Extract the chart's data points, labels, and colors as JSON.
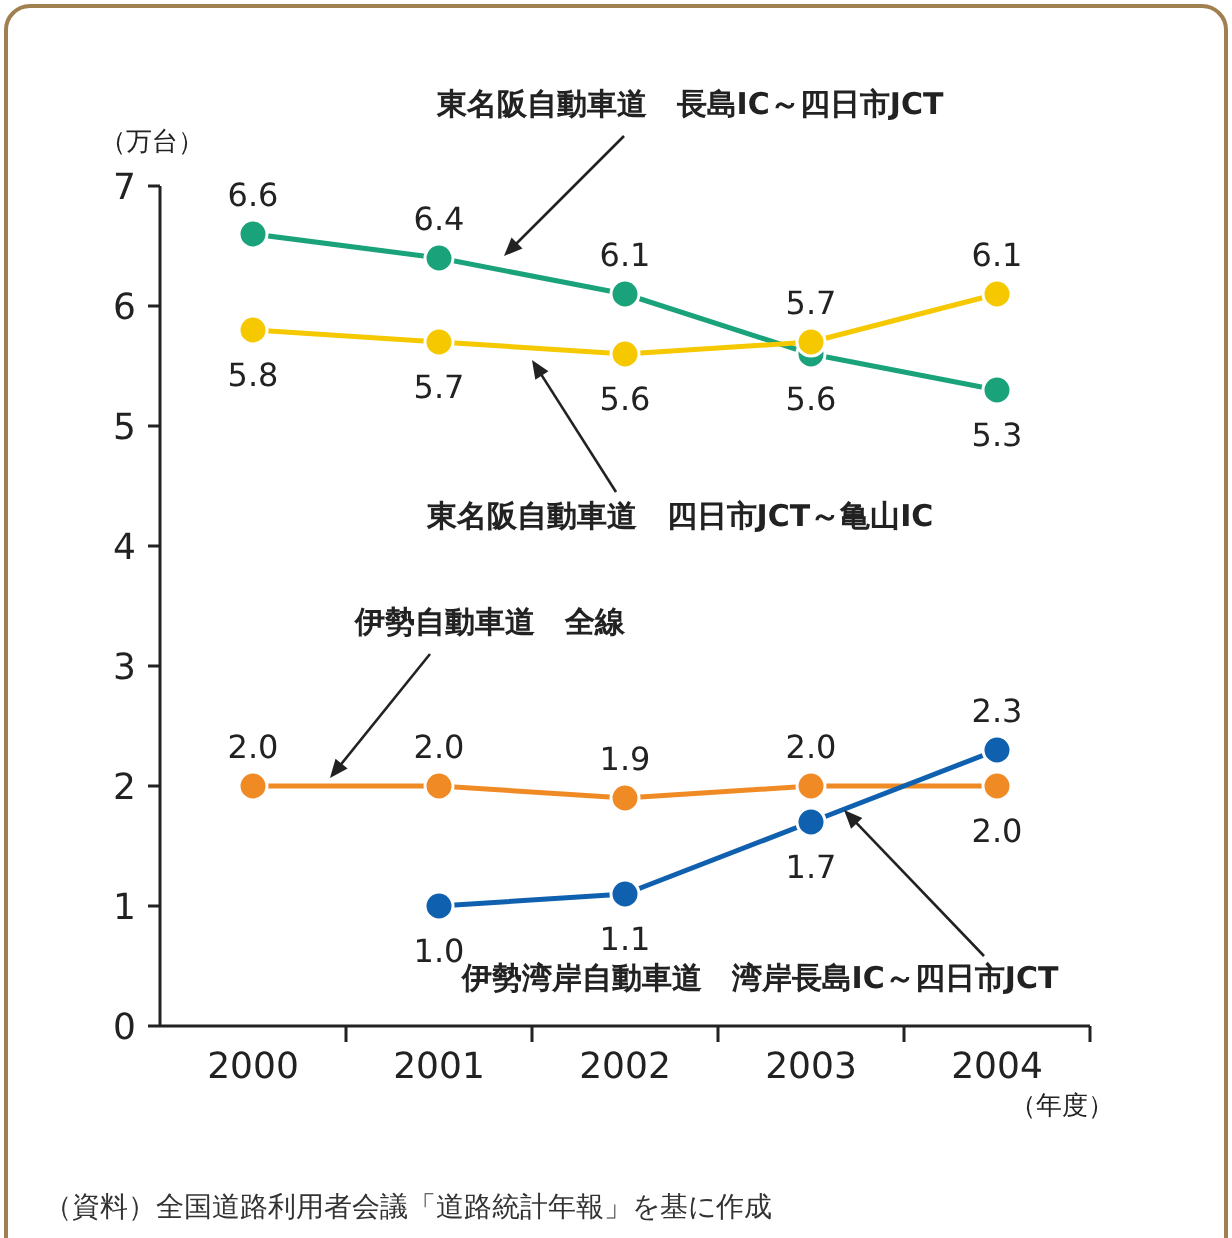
{
  "chart_data": {
    "type": "line",
    "categories": [
      "2000",
      "2001",
      "2002",
      "2003",
      "2004"
    ],
    "series": [
      {
        "name": "東名阪自動車道　長島IC～四日市JCT",
        "color": "#1aa37a",
        "values": [
          6.6,
          6.4,
          6.1,
          5.6,
          5.3
        ],
        "value_labels": [
          "6.6",
          "6.4",
          "6.1",
          "5.6",
          "5.3"
        ]
      },
      {
        "name": "東名阪自動車道　四日市JCT～亀山IC",
        "color": "#f5c800",
        "values": [
          5.8,
          5.7,
          5.6,
          5.7,
          6.1
        ],
        "value_labels": [
          "5.8",
          "5.7",
          "5.6",
          "5.7",
          "6.1"
        ]
      },
      {
        "name": "伊勢自動車道　全線",
        "color": "#f08a24",
        "values": [
          2.0,
          2.0,
          1.9,
          2.0,
          2.0
        ],
        "value_labels": [
          "2.0",
          "2.0",
          "1.9",
          "2.0",
          "2.0"
        ]
      },
      {
        "name": "伊勢湾岸自動車道　湾岸長島IC～四日市JCT",
        "color": "#1060b0",
        "values": [
          null,
          1.0,
          1.1,
          1.7,
          2.3
        ],
        "value_labels": [
          null,
          "1.0",
          "1.1",
          "1.7",
          "2.3"
        ]
      }
    ],
    "ylabel": "（万台）",
    "xlabel": "（年度）",
    "ylim": [
      0,
      7
    ],
    "yticks": [
      0,
      1,
      2,
      3,
      4,
      5,
      6,
      7
    ],
    "marker": "circle",
    "legend": false,
    "grid": false,
    "annotations": [
      "（資料）全国道路利用者会議「道路統計年報」を基に作成"
    ]
  }
}
